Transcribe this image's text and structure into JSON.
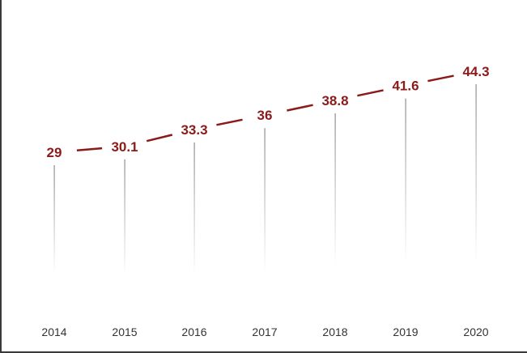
{
  "chart_data": {
    "type": "line",
    "categories": [
      "2014",
      "2015",
      "2016",
      "2017",
      "2018",
      "2019",
      "2020"
    ],
    "values": [
      29,
      30.1,
      33.3,
      36,
      38.8,
      41.6,
      44.3
    ],
    "value_labels": [
      "29",
      "30.1",
      "33.3",
      "36",
      "38.8",
      "41.6",
      "44.3"
    ],
    "title": "",
    "xlabel": "",
    "ylabel": "",
    "ylim": [
      0,
      50
    ],
    "grid": false,
    "legend": "none",
    "colors": {
      "line": "#8b1a1a",
      "label": "#8b1a1a",
      "drop_line": "#8c8c8c",
      "axis": "#3a3a3a",
      "tick_text": "#333333"
    }
  }
}
